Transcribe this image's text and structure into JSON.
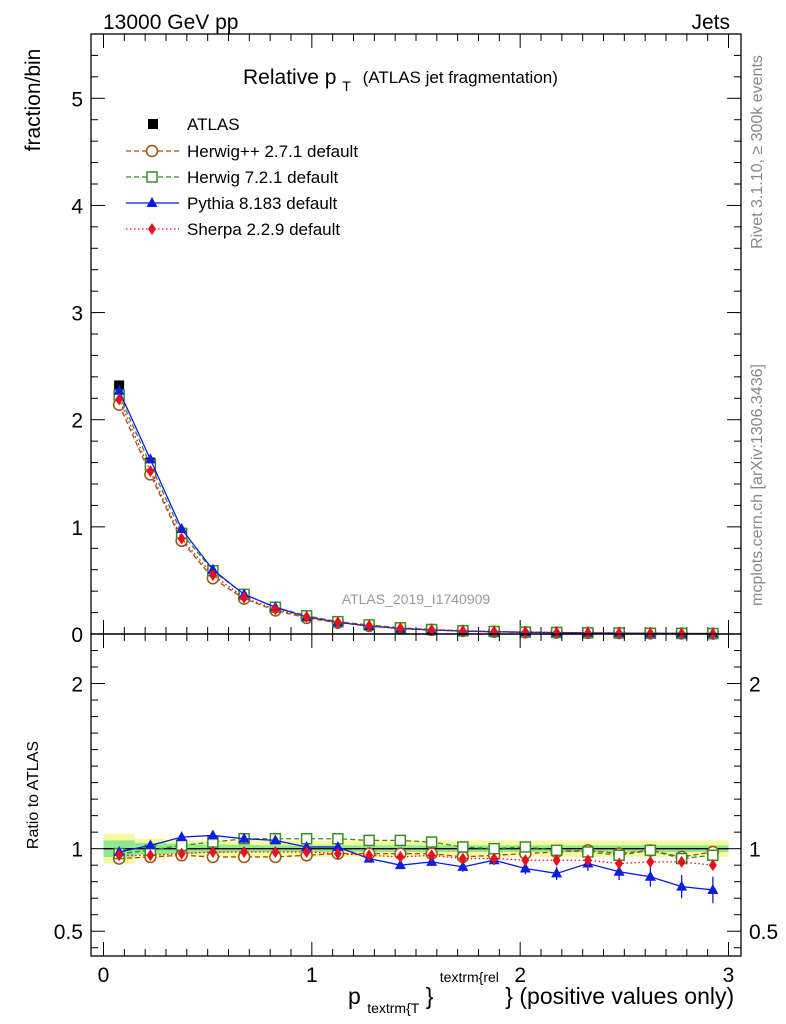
{
  "header": {
    "left": "13000 GeV pp",
    "right": "Jets"
  },
  "side_labels": {
    "top": "Rivet 3.1.10, ≥ 300k events",
    "bottom": "mcplots.cern.ch [arXiv:1306.3436]"
  },
  "chart_data": [
    {
      "type": "line",
      "title_main": "Relative p",
      "title_sub": "T",
      "title_rest": "(ATLAS jet fragmentation)",
      "watermark": "ATLAS_2019_I1740909",
      "ylabel": "fraction/bin",
      "xlim": [
        -0.06,
        3.06
      ],
      "ylim": [
        0,
        5.6
      ],
      "yticks": [
        {
          "v": 0,
          "label": "0"
        },
        {
          "v": 1,
          "label": "1"
        },
        {
          "v": 2,
          "label": "2"
        },
        {
          "v": 3,
          "label": "3"
        },
        {
          "v": 4,
          "label": "4"
        },
        {
          "v": 5,
          "label": "5"
        }
      ],
      "x": [
        0.075,
        0.225,
        0.375,
        0.525,
        0.675,
        0.825,
        0.975,
        1.125,
        1.275,
        1.425,
        1.575,
        1.725,
        1.875,
        2.025,
        2.175,
        2.325,
        2.475,
        2.625,
        2.775,
        2.925
      ],
      "legend": [
        {
          "key": "atlas",
          "label": "ATLAS"
        },
        {
          "key": "herwigpp",
          "label": "Herwig++ 2.7.1 default"
        },
        {
          "key": "herwig7",
          "label": "Herwig 7.2.1 default"
        },
        {
          "key": "pythia",
          "label": "Pythia 8.183 default"
        },
        {
          "key": "sherpa",
          "label": "Sherpa 2.2.9 default"
        }
      ],
      "series": [
        {
          "key": "atlas",
          "name": "ATLAS",
          "color": "#000000",
          "marker": "square-filled",
          "line": "none",
          "values": [
            2.32,
            1.6,
            0.92,
            0.56,
            0.35,
            0.24,
            0.16,
            0.11,
            0.08,
            0.055,
            0.04,
            0.03,
            0.023,
            0.018,
            0.014,
            0.011,
            0.009,
            0.007,
            0.005,
            0.004
          ]
        },
        {
          "key": "herwigpp",
          "name": "Herwig++ 2.7.1 default",
          "color": "#a0520f",
          "marker": "circle-open",
          "line": "dashed",
          "values": [
            2.14,
            1.49,
            0.87,
            0.52,
            0.33,
            0.22,
            0.15,
            0.105,
            0.075,
            0.052,
            0.038,
            0.028,
            0.021,
            0.016,
            0.013,
            0.01,
            0.008,
            0.006,
            0.005,
            0.004
          ]
        },
        {
          "key": "herwig7",
          "name": "Herwig 7.2.1 default",
          "color": "#3d8a2a",
          "marker": "square-open",
          "line": "dashed",
          "values": [
            2.23,
            1.58,
            0.94,
            0.59,
            0.37,
            0.25,
            0.17,
            0.115,
            0.085,
            0.058,
            0.042,
            0.03,
            0.023,
            0.018,
            0.014,
            0.011,
            0.009,
            0.007,
            0.005,
            0.004
          ]
        },
        {
          "key": "pythia",
          "name": "Pythia 8.183 default",
          "color": "#0a1ee0",
          "marker": "triangle-filled",
          "line": "solid",
          "values": [
            2.27,
            1.63,
            0.98,
            0.6,
            0.37,
            0.25,
            0.16,
            0.11,
            0.075,
            0.05,
            0.037,
            0.027,
            0.021,
            0.016,
            0.012,
            0.01,
            0.008,
            0.006,
            0.004,
            0.003
          ]
        },
        {
          "key": "sherpa",
          "name": "Sherpa 2.2.9 default",
          "color": "#e8101a",
          "marker": "diamond-filled",
          "line": "dotted",
          "values": [
            2.19,
            1.52,
            0.89,
            0.55,
            0.34,
            0.23,
            0.16,
            0.11,
            0.078,
            0.053,
            0.039,
            0.028,
            0.021,
            0.017,
            0.013,
            0.01,
            0.008,
            0.006,
            0.005,
            0.004
          ]
        }
      ]
    },
    {
      "type": "line",
      "ylabel": "Ratio to ATLAS",
      "xlabel_main": "p",
      "xlabel_sub": "textrm{T",
      "xlabel_brace": "}",
      "xlabel_sup": "textrm{rel",
      "xlabel_rest": "} (positive values only)",
      "xlim": [
        -0.06,
        3.06
      ],
      "ylim": [
        0.35,
        2.3
      ],
      "xticks": [
        {
          "v": 0,
          "label": "0"
        },
        {
          "v": 1,
          "label": "1"
        },
        {
          "v": 2,
          "label": "2"
        },
        {
          "v": 3,
          "label": "3"
        }
      ],
      "yticks": [
        {
          "v": 0.5,
          "label": "0.5"
        },
        {
          "v": 1,
          "label": "1"
        },
        {
          "v": 2,
          "label": "2"
        }
      ],
      "x": [
        0.075,
        0.225,
        0.375,
        0.525,
        0.675,
        0.825,
        0.975,
        1.125,
        1.275,
        1.425,
        1.575,
        1.725,
        1.875,
        2.025,
        2.175,
        2.325,
        2.475,
        2.625,
        2.775,
        2.925
      ],
      "band_inner": [
        0.05,
        0.035,
        0.03,
        0.025,
        0.022,
        0.02,
        0.02,
        0.02,
        0.02,
        0.02,
        0.02,
        0.02,
        0.02,
        0.02,
        0.02,
        0.02,
        0.02,
        0.02,
        0.02,
        0.02
      ],
      "band_outer": [
        0.09,
        0.06,
        0.05,
        0.05,
        0.05,
        0.05,
        0.05,
        0.05,
        0.05,
        0.05,
        0.05,
        0.05,
        0.05,
        0.05,
        0.05,
        0.05,
        0.05,
        0.05,
        0.05,
        0.05
      ],
      "series": [
        {
          "key": "herwigpp",
          "color": "#a0520f",
          "marker": "circle-open",
          "line": "dashed",
          "values": [
            0.94,
            0.95,
            0.96,
            0.95,
            0.95,
            0.95,
            0.96,
            0.97,
            0.97,
            0.97,
            0.97,
            0.95,
            0.96,
            0.97,
            0.98,
            0.99,
            0.97,
            0.99,
            0.95,
            0.98
          ],
          "errors": []
        },
        {
          "key": "herwig7",
          "color": "#3d8a2a",
          "marker": "square-open",
          "line": "dashed",
          "values": [
            0.97,
            0.99,
            1.02,
            1.04,
            1.06,
            1.06,
            1.06,
            1.06,
            1.05,
            1.05,
            1.04,
            1.01,
            1.0,
            1.01,
            0.99,
            0.98,
            0.96,
            0.99,
            0.94,
            0.96
          ],
          "errors": []
        },
        {
          "key": "pythia",
          "color": "#0a1ee0",
          "marker": "triangle-filled",
          "line": "solid",
          "values": [
            0.98,
            1.02,
            1.07,
            1.08,
            1.06,
            1.05,
            1.01,
            1.01,
            0.94,
            0.9,
            0.92,
            0.89,
            0.93,
            0.88,
            0.85,
            0.91,
            0.86,
            0.83,
            0.77,
            0.75
          ],
          "errors": [
            0.01,
            0.01,
            0.01,
            0.01,
            0.01,
            0.01,
            0.01,
            0.012,
            0.015,
            0.02,
            0.025,
            0.03,
            0.03,
            0.035,
            0.04,
            0.045,
            0.05,
            0.06,
            0.07,
            0.08
          ]
        },
        {
          "key": "sherpa",
          "color": "#e8101a",
          "marker": "diamond-filled",
          "line": "dotted",
          "values": [
            0.96,
            0.96,
            0.97,
            0.98,
            0.98,
            0.98,
            0.98,
            0.97,
            0.96,
            0.95,
            0.96,
            0.94,
            0.94,
            0.93,
            0.93,
            0.93,
            0.91,
            0.92,
            0.92,
            0.9
          ],
          "errors": []
        }
      ]
    }
  ]
}
